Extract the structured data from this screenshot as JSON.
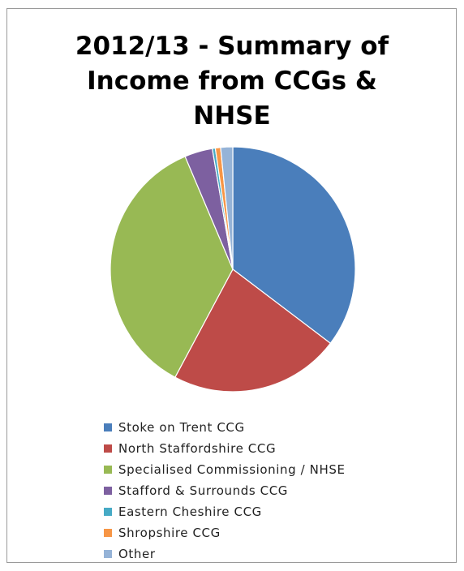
{
  "chart_data": {
    "type": "pie",
    "title_lines": [
      "2012/13 - Summary of",
      "Income from CCGs &",
      "NHSE"
    ],
    "title": "2012/13 - Summary of Income from CCGs & NHSE",
    "legend_position": "bottom",
    "slices": [
      {
        "label": "Stoke on Trent CCG",
        "value": 35.5,
        "color": "#4a7ebb"
      },
      {
        "label": "North Staffordshire CCG",
        "value": 22.6,
        "color": "#be4b48"
      },
      {
        "label": "Specialised Commissioning / NHSE",
        "value": 36.0,
        "color": "#98b954"
      },
      {
        "label": "Stafford & Surrounds CCG",
        "value": 3.7,
        "color": "#7d60a0"
      },
      {
        "label": "Eastern Cheshire CCG",
        "value": 0.4,
        "color": "#46aac5"
      },
      {
        "label": "Shropshire CCG",
        "value": 0.7,
        "color": "#f79646"
      },
      {
        "label": "Other",
        "value": 1.6,
        "color": "#95b3d7"
      }
    ]
  }
}
